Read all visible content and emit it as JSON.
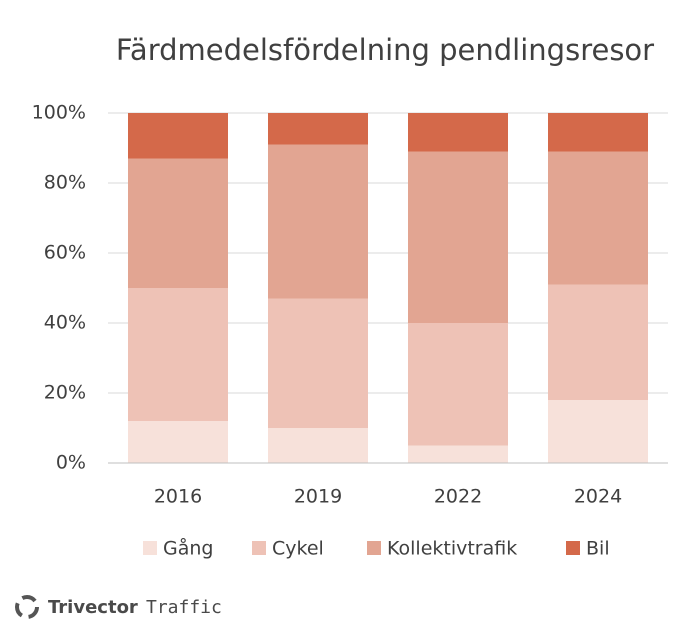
{
  "chart_data": {
    "type": "stacked-bar",
    "title": "Färdmedelsfördelning pendlingsresor",
    "categories": [
      "2016",
      "2019",
      "2022",
      "2024"
    ],
    "series": [
      {
        "name": "Gång",
        "color": "#f7e1da",
        "values": [
          12,
          10,
          5,
          18
        ]
      },
      {
        "name": "Cykel",
        "color": "#eec2b6",
        "values": [
          38,
          37,
          35,
          33
        ]
      },
      {
        "name": "Kollektivtrafik",
        "color": "#e2a592",
        "values": [
          37,
          44,
          49,
          38
        ]
      },
      {
        "name": "Bil",
        "color": "#d4694a",
        "values": [
          13,
          9,
          11,
          11
        ]
      }
    ],
    "ylim": [
      0,
      100
    ],
    "yticks": [
      {
        "value": 0,
        "label": "0%"
      },
      {
        "value": 20,
        "label": "20%"
      },
      {
        "value": 40,
        "label": "40%"
      },
      {
        "value": 60,
        "label": "60%"
      },
      {
        "value": 80,
        "label": "80%"
      },
      {
        "value": 100,
        "label": "100%"
      }
    ],
    "grid": true,
    "legend": "bottom"
  },
  "branding": {
    "name": "Trivector",
    "division": "Traffic"
  }
}
